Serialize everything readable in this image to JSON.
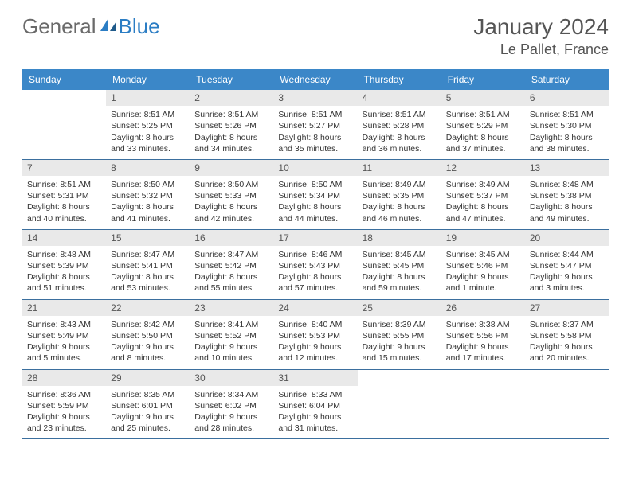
{
  "logo": {
    "part1": "General",
    "part2": "Blue"
  },
  "title": "January 2024",
  "location": "Le Pallet, France",
  "colors": {
    "header_bg": "#3b87c8",
    "header_text": "#ffffff",
    "daynum_bg": "#e9e9e9",
    "row_border": "#3b6f9e",
    "logo_blue": "#2b7dc4",
    "logo_gray": "#6a6a6a",
    "text": "#333333"
  },
  "day_headers": [
    "Sunday",
    "Monday",
    "Tuesday",
    "Wednesday",
    "Thursday",
    "Friday",
    "Saturday"
  ],
  "weeks": [
    [
      null,
      {
        "n": "1",
        "sr": "Sunrise: 8:51 AM",
        "ss": "Sunset: 5:25 PM",
        "d1": "Daylight: 8 hours",
        "d2": "and 33 minutes."
      },
      {
        "n": "2",
        "sr": "Sunrise: 8:51 AM",
        "ss": "Sunset: 5:26 PM",
        "d1": "Daylight: 8 hours",
        "d2": "and 34 minutes."
      },
      {
        "n": "3",
        "sr": "Sunrise: 8:51 AM",
        "ss": "Sunset: 5:27 PM",
        "d1": "Daylight: 8 hours",
        "d2": "and 35 minutes."
      },
      {
        "n": "4",
        "sr": "Sunrise: 8:51 AM",
        "ss": "Sunset: 5:28 PM",
        "d1": "Daylight: 8 hours",
        "d2": "and 36 minutes."
      },
      {
        "n": "5",
        "sr": "Sunrise: 8:51 AM",
        "ss": "Sunset: 5:29 PM",
        "d1": "Daylight: 8 hours",
        "d2": "and 37 minutes."
      },
      {
        "n": "6",
        "sr": "Sunrise: 8:51 AM",
        "ss": "Sunset: 5:30 PM",
        "d1": "Daylight: 8 hours",
        "d2": "and 38 minutes."
      }
    ],
    [
      {
        "n": "7",
        "sr": "Sunrise: 8:51 AM",
        "ss": "Sunset: 5:31 PM",
        "d1": "Daylight: 8 hours",
        "d2": "and 40 minutes."
      },
      {
        "n": "8",
        "sr": "Sunrise: 8:50 AM",
        "ss": "Sunset: 5:32 PM",
        "d1": "Daylight: 8 hours",
        "d2": "and 41 minutes."
      },
      {
        "n": "9",
        "sr": "Sunrise: 8:50 AM",
        "ss": "Sunset: 5:33 PM",
        "d1": "Daylight: 8 hours",
        "d2": "and 42 minutes."
      },
      {
        "n": "10",
        "sr": "Sunrise: 8:50 AM",
        "ss": "Sunset: 5:34 PM",
        "d1": "Daylight: 8 hours",
        "d2": "and 44 minutes."
      },
      {
        "n": "11",
        "sr": "Sunrise: 8:49 AM",
        "ss": "Sunset: 5:35 PM",
        "d1": "Daylight: 8 hours",
        "d2": "and 46 minutes."
      },
      {
        "n": "12",
        "sr": "Sunrise: 8:49 AM",
        "ss": "Sunset: 5:37 PM",
        "d1": "Daylight: 8 hours",
        "d2": "and 47 minutes."
      },
      {
        "n": "13",
        "sr": "Sunrise: 8:48 AM",
        "ss": "Sunset: 5:38 PM",
        "d1": "Daylight: 8 hours",
        "d2": "and 49 minutes."
      }
    ],
    [
      {
        "n": "14",
        "sr": "Sunrise: 8:48 AM",
        "ss": "Sunset: 5:39 PM",
        "d1": "Daylight: 8 hours",
        "d2": "and 51 minutes."
      },
      {
        "n": "15",
        "sr": "Sunrise: 8:47 AM",
        "ss": "Sunset: 5:41 PM",
        "d1": "Daylight: 8 hours",
        "d2": "and 53 minutes."
      },
      {
        "n": "16",
        "sr": "Sunrise: 8:47 AM",
        "ss": "Sunset: 5:42 PM",
        "d1": "Daylight: 8 hours",
        "d2": "and 55 minutes."
      },
      {
        "n": "17",
        "sr": "Sunrise: 8:46 AM",
        "ss": "Sunset: 5:43 PM",
        "d1": "Daylight: 8 hours",
        "d2": "and 57 minutes."
      },
      {
        "n": "18",
        "sr": "Sunrise: 8:45 AM",
        "ss": "Sunset: 5:45 PM",
        "d1": "Daylight: 8 hours",
        "d2": "and 59 minutes."
      },
      {
        "n": "19",
        "sr": "Sunrise: 8:45 AM",
        "ss": "Sunset: 5:46 PM",
        "d1": "Daylight: 9 hours",
        "d2": "and 1 minute."
      },
      {
        "n": "20",
        "sr": "Sunrise: 8:44 AM",
        "ss": "Sunset: 5:47 PM",
        "d1": "Daylight: 9 hours",
        "d2": "and 3 minutes."
      }
    ],
    [
      {
        "n": "21",
        "sr": "Sunrise: 8:43 AM",
        "ss": "Sunset: 5:49 PM",
        "d1": "Daylight: 9 hours",
        "d2": "and 5 minutes."
      },
      {
        "n": "22",
        "sr": "Sunrise: 8:42 AM",
        "ss": "Sunset: 5:50 PM",
        "d1": "Daylight: 9 hours",
        "d2": "and 8 minutes."
      },
      {
        "n": "23",
        "sr": "Sunrise: 8:41 AM",
        "ss": "Sunset: 5:52 PM",
        "d1": "Daylight: 9 hours",
        "d2": "and 10 minutes."
      },
      {
        "n": "24",
        "sr": "Sunrise: 8:40 AM",
        "ss": "Sunset: 5:53 PM",
        "d1": "Daylight: 9 hours",
        "d2": "and 12 minutes."
      },
      {
        "n": "25",
        "sr": "Sunrise: 8:39 AM",
        "ss": "Sunset: 5:55 PM",
        "d1": "Daylight: 9 hours",
        "d2": "and 15 minutes."
      },
      {
        "n": "26",
        "sr": "Sunrise: 8:38 AM",
        "ss": "Sunset: 5:56 PM",
        "d1": "Daylight: 9 hours",
        "d2": "and 17 minutes."
      },
      {
        "n": "27",
        "sr": "Sunrise: 8:37 AM",
        "ss": "Sunset: 5:58 PM",
        "d1": "Daylight: 9 hours",
        "d2": "and 20 minutes."
      }
    ],
    [
      {
        "n": "28",
        "sr": "Sunrise: 8:36 AM",
        "ss": "Sunset: 5:59 PM",
        "d1": "Daylight: 9 hours",
        "d2": "and 23 minutes."
      },
      {
        "n": "29",
        "sr": "Sunrise: 8:35 AM",
        "ss": "Sunset: 6:01 PM",
        "d1": "Daylight: 9 hours",
        "d2": "and 25 minutes."
      },
      {
        "n": "30",
        "sr": "Sunrise: 8:34 AM",
        "ss": "Sunset: 6:02 PM",
        "d1": "Daylight: 9 hours",
        "d2": "and 28 minutes."
      },
      {
        "n": "31",
        "sr": "Sunrise: 8:33 AM",
        "ss": "Sunset: 6:04 PM",
        "d1": "Daylight: 9 hours",
        "d2": "and 31 minutes."
      },
      null,
      null,
      null
    ]
  ]
}
